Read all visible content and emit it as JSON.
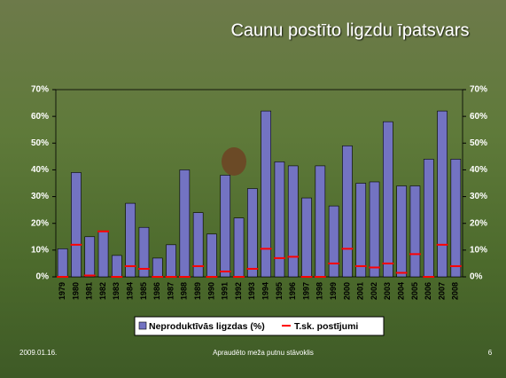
{
  "chart_data": {
    "type": "bar",
    "title": "Caunu postīto ligzdu īpatsvars",
    "categories": [
      "1979",
      "1980",
      "1981",
      "1982",
      "1983",
      "1984",
      "1985",
      "1986",
      "1987",
      "1988",
      "1989",
      "1990",
      "1991",
      "1992",
      "1993",
      "1994",
      "1995",
      "1996",
      "1997",
      "1998",
      "1999",
      "2000",
      "2001",
      "2002",
      "2003",
      "2004",
      "2005",
      "2006",
      "2007",
      "2008"
    ],
    "series": [
      {
        "name": "Neproduktīvās ligzdas (%)",
        "type": "bar",
        "color": "#7373c2",
        "values": [
          10.5,
          39,
          15,
          17,
          8,
          27.5,
          18.5,
          7,
          12,
          40,
          24,
          16,
          38,
          22,
          33,
          62,
          43,
          41.5,
          29.5,
          41.5,
          26.5,
          49,
          35,
          35.5,
          58,
          34,
          34,
          44,
          62,
          44
        ]
      },
      {
        "name": "T.sk. postījumi",
        "type": "dash",
        "color": "#ff0000",
        "values": [
          0,
          12,
          0.5,
          17,
          0,
          4,
          3,
          0,
          0,
          0,
          4,
          0,
          2,
          0,
          3,
          10.5,
          7,
          7.5,
          0,
          0,
          5,
          10.5,
          4,
          3.5,
          5,
          1.5,
          8.5,
          0,
          12,
          4
        ]
      }
    ],
    "ylim": [
      0,
      70
    ],
    "yticks": [
      {
        "value": 0,
        "label": "0%"
      },
      {
        "value": 10,
        "label": "10%"
      },
      {
        "value": 20,
        "label": "20%"
      },
      {
        "value": 30,
        "label": "30%"
      },
      {
        "value": 40,
        "label": "40%"
      },
      {
        "value": 50,
        "label": "50%"
      },
      {
        "value": 60,
        "label": "60%"
      },
      {
        "value": 70,
        "label": "70%"
      }
    ]
  },
  "footer": {
    "date": "2009.01.16.",
    "text": "Apraudēto meža putnu stāvoklis",
    "page": "6"
  }
}
